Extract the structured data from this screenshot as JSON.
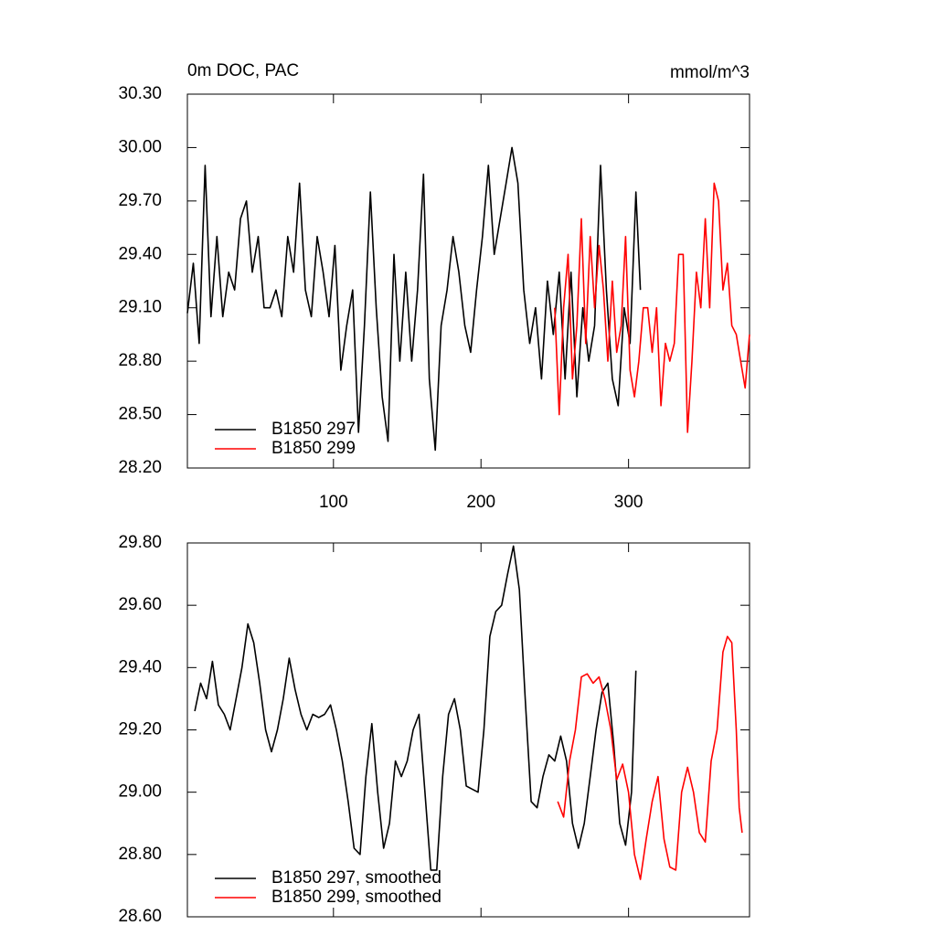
{
  "chart_data": [
    {
      "type": "line",
      "title": "0m DOC, PAC",
      "units": "mmol/m^3",
      "xlim": [
        1,
        382
      ],
      "xticks": [
        100,
        200,
        300
      ],
      "ylim": [
        28.2,
        30.3
      ],
      "yticks": [
        {
          "value": 28.2,
          "label": "28.20"
        },
        {
          "value": 28.5,
          "label": "28.50"
        },
        {
          "value": 28.8,
          "label": "28.80"
        },
        {
          "value": 29.1,
          "label": "29.10"
        },
        {
          "value": 29.4,
          "label": "29.40"
        },
        {
          "value": 29.7,
          "label": "29.70"
        },
        {
          "value": 30.0,
          "label": "30.00"
        },
        {
          "value": 30.3,
          "label": "30.30"
        }
      ],
      "legend": "lower left",
      "series": [
        {
          "name": "B1850 297",
          "color": "#000000",
          "x": [
            1,
            5,
            9,
            13,
            17,
            21,
            25,
            29,
            33,
            37,
            41,
            45,
            49,
            53,
            57,
            61,
            65,
            69,
            73,
            77,
            81,
            85,
            89,
            93,
            97,
            101,
            105,
            109,
            113,
            117,
            121,
            125,
            129,
            133,
            137,
            141,
            145,
            149,
            153,
            157,
            161,
            165,
            169,
            173,
            177,
            181,
            185,
            189,
            193,
            197,
            201,
            205,
            209,
            213,
            217,
            221,
            225,
            229,
            233,
            237,
            241,
            245,
            249,
            253,
            257,
            261,
            265,
            269,
            273,
            277,
            281,
            285,
            289,
            293,
            297,
            301,
            305,
            308
          ],
          "values": [
            29.07,
            29.35,
            28.9,
            29.9,
            29.05,
            29.5,
            29.05,
            29.3,
            29.2,
            29.6,
            29.7,
            29.3,
            29.5,
            29.1,
            29.1,
            29.2,
            29.05,
            29.5,
            29.3,
            29.8,
            29.2,
            29.05,
            29.5,
            29.3,
            29.05,
            29.45,
            28.75,
            29.0,
            29.2,
            28.4,
            29.0,
            29.75,
            29.1,
            28.6,
            28.35,
            29.4,
            28.8,
            29.3,
            28.8,
            29.2,
            29.85,
            28.7,
            28.3,
            29.0,
            29.2,
            29.5,
            29.3,
            29.0,
            28.85,
            29.2,
            29.5,
            29.9,
            29.4,
            29.6,
            29.8,
            30.0,
            29.8,
            29.2,
            28.9,
            29.1,
            28.7,
            29.25,
            28.95,
            29.3,
            28.7,
            29.3,
            28.6,
            29.1,
            28.8,
            29.0,
            29.9,
            29.2,
            28.7,
            28.55,
            29.1,
            28.9,
            29.75,
            29.2
          ]
        },
        {
          "name": "B1850 299",
          "color": "#ff0000",
          "x": [
            250,
            253,
            256,
            259,
            262,
            265,
            268,
            271,
            274,
            277,
            280,
            283,
            286,
            289,
            292,
            295,
            298,
            301,
            304,
            307,
            310,
            313,
            316,
            319,
            322,
            325,
            328,
            331,
            334,
            337,
            340,
            343,
            346,
            349,
            352,
            355,
            358,
            361,
            364,
            367,
            370,
            373,
            376,
            379,
            382
          ],
          "values": [
            29.1,
            28.5,
            29.1,
            29.4,
            28.7,
            29.0,
            29.6,
            28.9,
            29.5,
            29.1,
            29.45,
            29.2,
            28.8,
            29.25,
            28.85,
            29.0,
            29.5,
            28.75,
            28.6,
            28.8,
            29.1,
            29.1,
            28.85,
            29.1,
            28.55,
            28.9,
            28.8,
            28.9,
            29.4,
            29.4,
            28.4,
            28.8,
            29.3,
            29.1,
            29.6,
            29.1,
            29.8,
            29.7,
            29.2,
            29.35,
            29.0,
            28.95,
            28.8,
            28.65,
            28.95
          ]
        }
      ]
    },
    {
      "type": "line",
      "xlim": [
        1,
        382
      ],
      "xticks": [
        100,
        200,
        300
      ],
      "ylim": [
        28.6,
        29.8
      ],
      "yticks": [
        {
          "value": 28.6,
          "label": "28.60"
        },
        {
          "value": 28.8,
          "label": "28.80"
        },
        {
          "value": 29.0,
          "label": "29.00"
        },
        {
          "value": 29.2,
          "label": "29.20"
        },
        {
          "value": 29.4,
          "label": "29.40"
        },
        {
          "value": 29.6,
          "label": "29.60"
        },
        {
          "value": 29.8,
          "label": "29.80"
        }
      ],
      "legend": "lower left",
      "series": [
        {
          "name": "B1850 297, smoothed",
          "color": "#000000",
          "x": [
            6,
            10,
            14,
            18,
            22,
            26,
            30,
            34,
            38,
            42,
            46,
            50,
            54,
            58,
            62,
            66,
            70,
            74,
            78,
            82,
            86,
            90,
            94,
            98,
            102,
            106,
            110,
            114,
            118,
            122,
            126,
            130,
            134,
            138,
            142,
            146,
            150,
            154,
            158,
            162,
            166,
            170,
            174,
            178,
            182,
            186,
            190,
            194,
            198,
            202,
            206,
            210,
            214,
            218,
            222,
            226,
            230,
            234,
            238,
            242,
            246,
            250,
            254,
            258,
            262,
            266,
            270,
            274,
            278,
            282,
            286,
            290,
            294,
            298,
            302,
            305
          ],
          "values": [
            29.26,
            29.35,
            29.3,
            29.42,
            29.28,
            29.25,
            29.2,
            29.3,
            29.4,
            29.54,
            29.48,
            29.35,
            29.2,
            29.13,
            29.2,
            29.3,
            29.43,
            29.33,
            29.25,
            29.2,
            29.25,
            29.24,
            29.25,
            29.28,
            29.2,
            29.1,
            28.97,
            28.82,
            28.8,
            29.05,
            29.22,
            29.0,
            28.82,
            28.9,
            29.1,
            29.05,
            29.1,
            29.2,
            29.25,
            29.0,
            28.75,
            28.75,
            29.05,
            29.25,
            29.3,
            29.2,
            29.02,
            29.01,
            29.0,
            29.2,
            29.5,
            29.58,
            29.6,
            29.7,
            29.79,
            29.65,
            29.3,
            28.97,
            28.95,
            29.05,
            29.12,
            29.1,
            29.18,
            29.1,
            28.9,
            28.82,
            28.9,
            29.05,
            29.2,
            29.32,
            29.35,
            29.15,
            28.9,
            28.83,
            29.0,
            29.39
          ]
        },
        {
          "name": "B1850 299, smoothed",
          "color": "#ff0000",
          "x": [
            252,
            256,
            260,
            264,
            268,
            272,
            276,
            280,
            284,
            288,
            292,
            296,
            300,
            304,
            308,
            312,
            316,
            320,
            324,
            328,
            332,
            336,
            340,
            344,
            348,
            352,
            356,
            360,
            364,
            367,
            370,
            373,
            375,
            377
          ],
          "values": [
            28.97,
            28.92,
            29.1,
            29.2,
            29.37,
            29.38,
            29.35,
            29.37,
            29.3,
            29.2,
            29.04,
            29.09,
            29.0,
            28.8,
            28.72,
            28.85,
            28.97,
            29.05,
            28.85,
            28.76,
            28.75,
            29.0,
            29.08,
            29.0,
            28.87,
            28.84,
            29.1,
            29.2,
            29.45,
            29.5,
            29.48,
            29.2,
            28.95,
            28.87
          ]
        }
      ]
    }
  ]
}
